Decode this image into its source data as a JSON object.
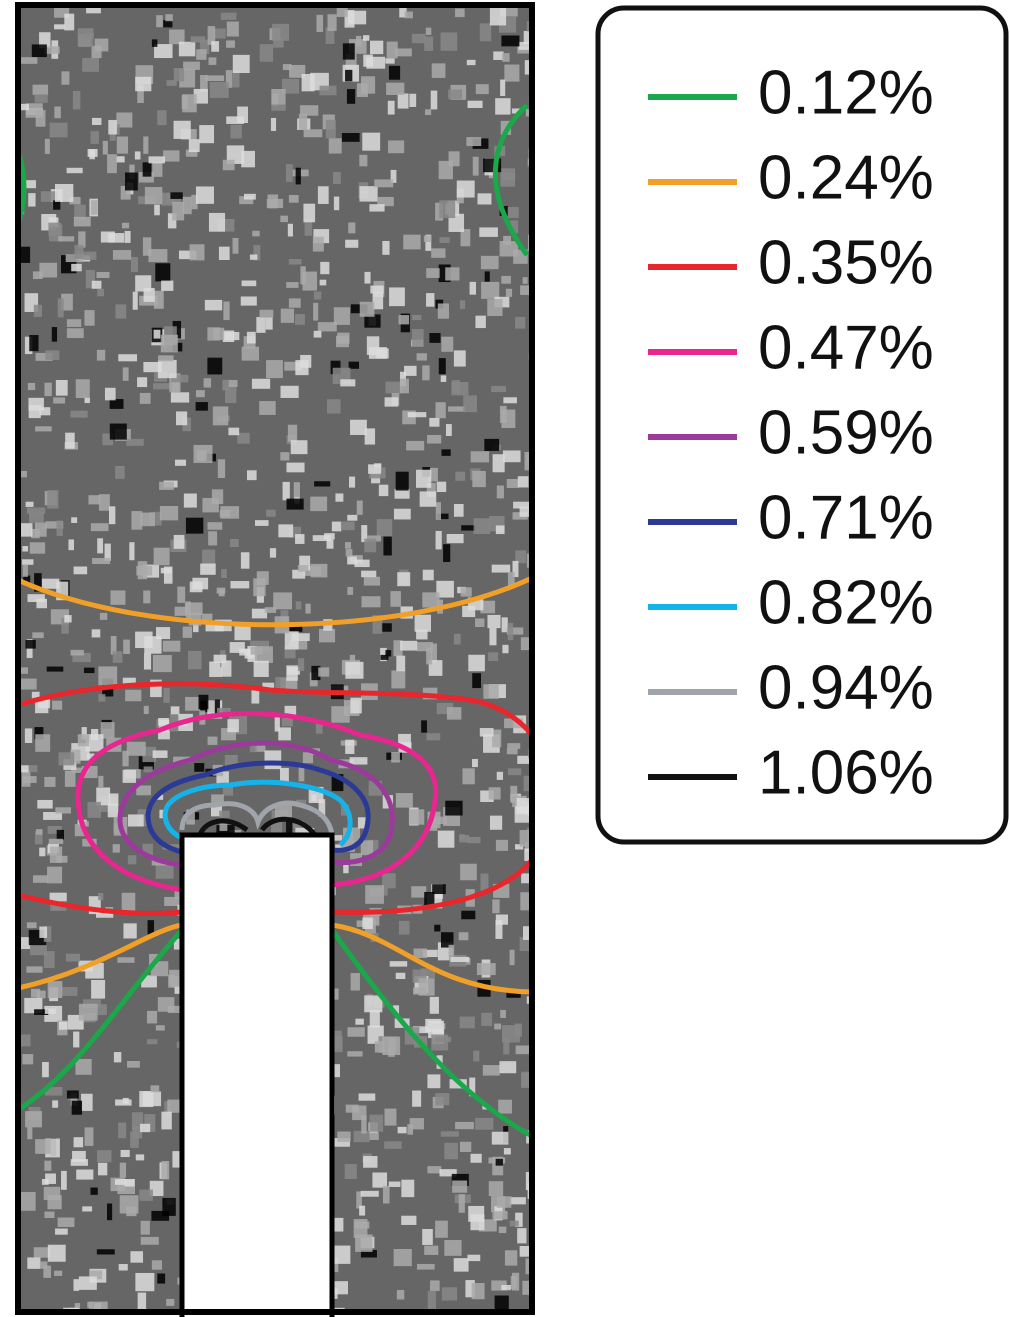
{
  "chart_data": {
    "type": "contour",
    "series": [
      {
        "name": "0.12%",
        "color": "#1aa84a"
      },
      {
        "name": "0.24%",
        "color": "#f0a028"
      },
      {
        "name": "0.35%",
        "color": "#e8262b"
      },
      {
        "name": "0.47%",
        "color": "#e9258f"
      },
      {
        "name": "0.59%",
        "color": "#9c3a9b"
      },
      {
        "name": "0.71%",
        "color": "#2b3a96"
      },
      {
        "name": "0.82%",
        "color": "#14b4ea"
      },
      {
        "name": "0.94%",
        "color": "#a0a5ab"
      },
      {
        "name": "1.06%",
        "color": "#111111"
      }
    ]
  }
}
